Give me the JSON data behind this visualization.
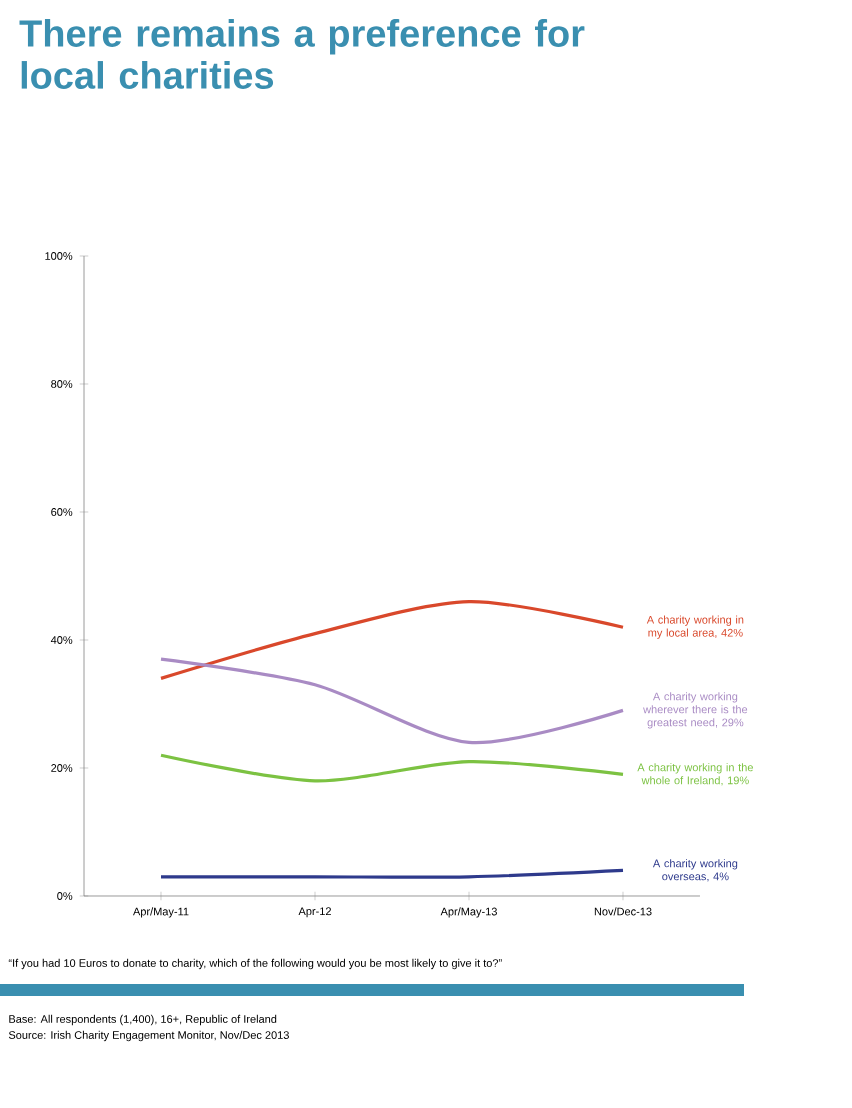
{
  "chart_data": {
    "type": "line",
    "title": "There remains a preference for local charities",
    "categories": [
      "Apr/May-11",
      "Apr-12",
      "Apr/May-13",
      "Nov/Dec-13"
    ],
    "series": [
      {
        "name": "A charity working in my local area, 42%",
        "color": "#d9482b",
        "values": [
          34,
          41,
          46,
          42
        ]
      },
      {
        "name": "A charity working wherever there is the greatest need, 29%",
        "color": "#a98bc4",
        "values": [
          37,
          33,
          24,
          29
        ]
      },
      {
        "name": "A charity working in the whole of Ireland, 19%",
        "color": "#7cc242",
        "values": [
          22,
          18,
          21,
          19
        ]
      },
      {
        "name": "A charity working overseas, 4%",
        "color": "#2e3a8c",
        "values": [
          3,
          3,
          3,
          4
        ]
      }
    ],
    "ylim": [
      0,
      100
    ],
    "yticks": [
      {
        "value": 0,
        "label": "0%"
      },
      {
        "value": 20,
        "label": "20%"
      },
      {
        "value": 40,
        "label": "40%"
      },
      {
        "value": 60,
        "label": "60%"
      },
      {
        "value": 80,
        "label": "80%"
      },
      {
        "value": 100,
        "label": "100%"
      }
    ],
    "grid": false,
    "legend": false,
    "marker": "none",
    "line_style": "solid",
    "annotations": [
      "“If you had 10 Euros to donate to charity, which of the following would you be most likely to give it to?”",
      "Base: All respondents (1,400), 16+, Republic of Ireland",
      "Source: Irish Charity Engagement Monitor, Nov/Dec 2013"
    ]
  }
}
